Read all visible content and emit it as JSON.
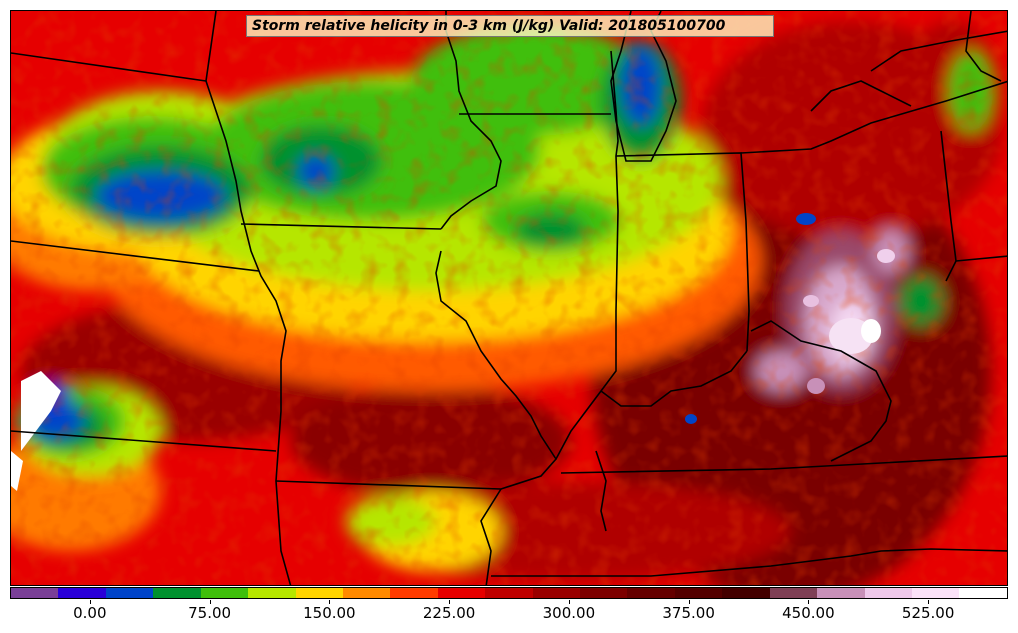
{
  "title": "Storm relative helicity in 0-3 km (J/kg) Valid: 201805100700",
  "colorbar": {
    "colors": [
      "#7a3f97",
      "#2a00d8",
      "#0044c9",
      "#00912e",
      "#3fbf0b",
      "#b6e600",
      "#ffd400",
      "#ff8a00",
      "#ff3b00",
      "#e60000",
      "#bf0000",
      "#9a0000",
      "#7d0000",
      "#650000",
      "#540000",
      "#430000",
      "#7f3f55",
      "#c890b8",
      "#efc8ea",
      "#fbe2f8",
      "#ffffff"
    ],
    "ticks": [
      {
        "label": "0.00",
        "value": 0
      },
      {
        "label": "75.00",
        "value": 75
      },
      {
        "label": "150.00",
        "value": 150
      },
      {
        "label": "225.00",
        "value": 225
      },
      {
        "label": "300.00",
        "value": 300
      },
      {
        "label": "375.00",
        "value": 375
      },
      {
        "label": "450.00",
        "value": 450
      },
      {
        "label": "525.00",
        "value": 525
      }
    ],
    "min": -50,
    "max": 575
  }
}
